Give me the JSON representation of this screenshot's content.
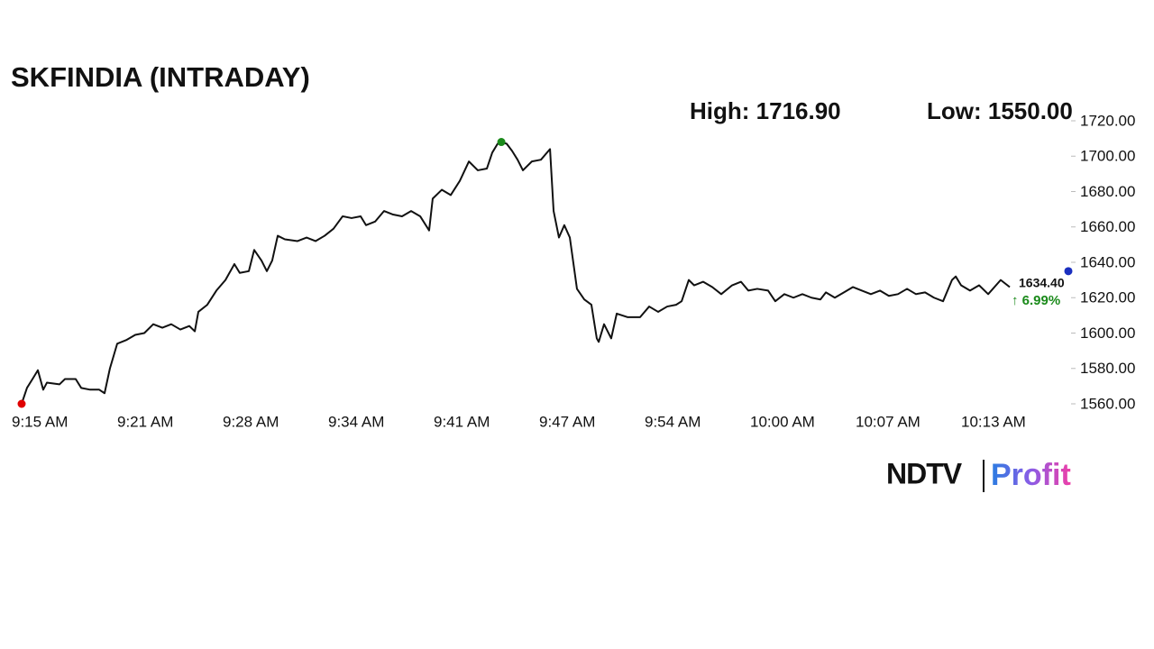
{
  "chart_data": {
    "type": "line",
    "title": "SKFINDIA (INTRADAY)",
    "high_label": "High: 1716.90",
    "low_label": "Low: 1550.00",
    "last_price": "1634.40",
    "change": "↑ 6.99%",
    "x": [
      555,
      555.33,
      555.67,
      556,
      556.33,
      556.56,
      557.33,
      557.67,
      558.33,
      558.67,
      559.22,
      559.78,
      560.11,
      560.44,
      560.89,
      561.44,
      562,
      562.56,
      563.11,
      563.67,
      564.22,
      564.78,
      565.33,
      565.67,
      565.89,
      566.44,
      567,
      567.56,
      568.11,
      568.44,
      569,
      569.33,
      569.78,
      570.11,
      570.44,
      570.78,
      571.22,
      572,
      572.56,
      573.11,
      573.67,
      574.22,
      574.78,
      575.33,
      575.89,
      576.22,
      576.78,
      577.33,
      577.89,
      578.44,
      579,
      579.56,
      580.11,
      580.33,
      580.89,
      581.44,
      582,
      582.56,
      583.11,
      583.67,
      584,
      584.33,
      584.56,
      584.89,
      585.22,
      585.56,
      585.89,
      586.44,
      587,
      587.56,
      587.78,
      588.11,
      588.44,
      588.78,
      589.22,
      589.67,
      590.11,
      590.44,
      590.56,
      590.89,
      591.33,
      591.67,
      592.33,
      593.11,
      593.67,
      594.22,
      594.78,
      595.33,
      595.67,
      596.11,
      596.44,
      597,
      597.56,
      598.11,
      598.78,
      599.33,
      599.78,
      600.33,
      601,
      601.44,
      602,
      602.56,
      603.11,
      603.67,
      604.22,
      604.56,
      605.11,
      605.67,
      606.22,
      606.78,
      607.33,
      607.89,
      608.44,
      609,
      609.56,
      610.11,
      610.67,
      611.22,
      611.78,
      612.33,
      612.56,
      612.89,
      613.44,
      614,
      614.56,
      615.33,
      615.89
    ],
    "series": [
      {
        "color": "#111111",
        "values": [
          1560,
          1569,
          1574,
          1579,
          1568,
          1572,
          1571,
          1574,
          1574,
          1569,
          1568,
          1568,
          1566,
          1580,
          1594,
          1596,
          1599,
          1600,
          1605,
          1603,
          1605,
          1602,
          1604,
          1601,
          1612,
          1616,
          1624,
          1630,
          1639,
          1634,
          1635,
          1647,
          1641,
          1635,
          1641,
          1655,
          1653,
          1652,
          1654,
          1652,
          1655,
          1659,
          1666,
          1665,
          1666,
          1661,
          1663,
          1669,
          1667,
          1666,
          1669,
          1666,
          1658,
          1676,
          1681,
          1678,
          1686,
          1697,
          1692,
          1693,
          1702,
          1707,
          1708,
          1707,
          1703,
          1698,
          1692,
          1697,
          1698,
          1704,
          1669,
          1654,
          1661,
          1654,
          1625,
          1619,
          1616,
          1597,
          1595,
          1605,
          1597,
          1611,
          1609,
          1609,
          1615,
          1612,
          1615,
          1616,
          1618,
          1630,
          1627,
          1629,
          1626,
          1622,
          1627,
          1629,
          1624,
          1625,
          1624,
          1618,
          1622,
          1620,
          1622,
          1620,
          1619,
          1623,
          1620,
          1623,
          1626,
          1624,
          1622,
          1624,
          1621,
          1622,
          1625,
          1622,
          1623,
          1620,
          1618,
          1630,
          1632,
          1627,
          1624,
          1627,
          1622,
          1630,
          1626
        ]
      }
    ],
    "markers": [
      {
        "x": 555,
        "y": 1560,
        "color": "#e00000"
      },
      {
        "x": 584.56,
        "y": 1708,
        "color": "#1a8a1a"
      },
      {
        "x": 619.5,
        "y": 1635,
        "color": "#1a2fbf"
      }
    ],
    "xlim": [
      555,
      620
    ],
    "xticks": [
      {
        "value": 555,
        "label": "9:15 AM"
      },
      {
        "value": 561.5,
        "label": "9:21 AM"
      },
      {
        "value": 568,
        "label": "9:28 AM"
      },
      {
        "value": 574.5,
        "label": "9:34 AM"
      },
      {
        "value": 581,
        "label": "9:41 AM"
      },
      {
        "value": 587.5,
        "label": "9:47 AM"
      },
      {
        "value": 594,
        "label": "9:54 AM"
      },
      {
        "value": 600.5,
        "label": "10:00 AM"
      },
      {
        "value": 607,
        "label": "10:07 AM"
      },
      {
        "value": 613.5,
        "label": "10:13 AM"
      }
    ],
    "ylim": [
      1560,
      1720
    ],
    "yticks": [
      {
        "value": 1560,
        "label": "1560.00"
      },
      {
        "value": 1580,
        "label": "1580.00"
      },
      {
        "value": 1600,
        "label": "1600.00"
      },
      {
        "value": 1620,
        "label": "1620.00"
      },
      {
        "value": 1640,
        "label": "1640.00"
      },
      {
        "value": 1660,
        "label": "1660.00"
      },
      {
        "value": 1680,
        "label": "1680.00"
      },
      {
        "value": 1700,
        "label": "1700.00"
      },
      {
        "value": 1720,
        "label": "1720.00"
      }
    ],
    "grid": false
  },
  "logo": {
    "brand": "NDTV",
    "product": "Profit"
  }
}
